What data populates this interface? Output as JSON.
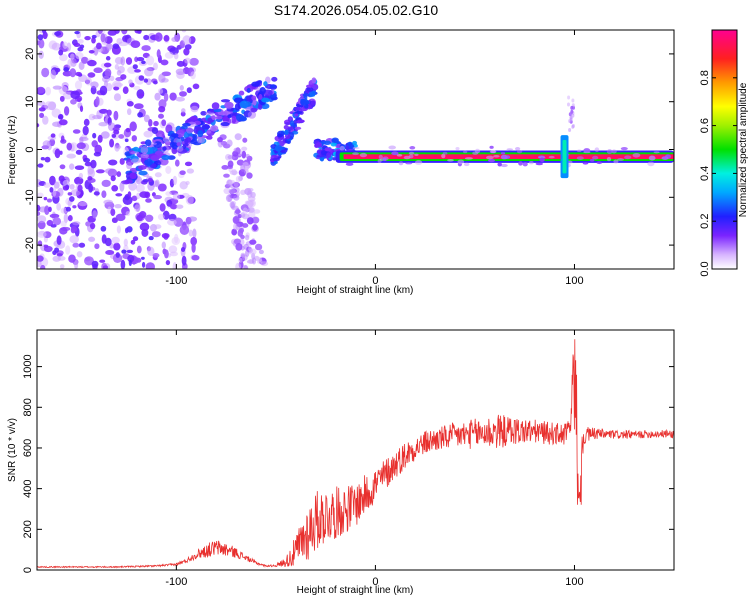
{
  "title": "S174.2026.054.05.02.G10",
  "chart_data": [
    {
      "type": "heatmap",
      "name": "spectrogram",
      "xlabel": "Height of straight line (km)",
      "ylabel": "Frequency (Hz)",
      "xlim": [
        -170,
        150
      ],
      "ylim": [
        -25,
        25
      ],
      "xticks": [
        -100,
        0,
        100
      ],
      "yticks": [
        -20,
        -10,
        0,
        10,
        20
      ],
      "colorbar": {
        "label": "Normalized spectral amplitude",
        "range": [
          0,
          1
        ],
        "ticks": [
          "0.0",
          "0.2",
          "0.4",
          "0.6",
          "0.8"
        ]
      },
      "features": [
        {
          "description": "strong carrier line",
          "x_range": [
            -20,
            150
          ],
          "frequency": -1.5,
          "amplitude": 0.95
        },
        {
          "description": "diagonal band",
          "x_range": [
            -120,
            -50
          ],
          "frequency_range": [
            -4,
            12
          ],
          "amplitude": 0.3
        },
        {
          "description": "diagonal band 2",
          "x_range": [
            -50,
            -30
          ],
          "frequency_range": [
            -2,
            12
          ],
          "amplitude": 0.3
        },
        {
          "description": "spike near 95 km",
          "x": 95,
          "frequency_range": [
            -6,
            3
          ],
          "amplitude": 0.4
        },
        {
          "description": "scattered noise",
          "x_range": [
            -170,
            -100
          ],
          "frequency_range": [
            -25,
            25
          ],
          "amplitude": 0.1
        }
      ]
    },
    {
      "type": "line",
      "name": "snr",
      "xlabel": "Height of straight line (km)",
      "ylabel": "SNR (10 * v/v)",
      "xlim": [
        -170,
        150
      ],
      "ylim": [
        0,
        1180
      ],
      "xticks": [
        -100,
        0,
        100
      ],
      "yticks": [
        0,
        200,
        400,
        600,
        800,
        1000
      ],
      "color": "#e8302e",
      "series": [
        {
          "name": "SNR",
          "x": [
            -170,
            -150,
            -130,
            -110,
            -100,
            -95,
            -90,
            -85,
            -80,
            -75,
            -70,
            -65,
            -60,
            -55,
            -50,
            -45,
            -40,
            -35,
            -30,
            -25,
            -20,
            -15,
            -10,
            -5,
            0,
            5,
            10,
            15,
            20,
            25,
            30,
            40,
            50,
            60,
            70,
            80,
            90,
            95,
            98,
            100,
            102,
            105,
            110,
            120,
            130,
            140,
            150
          ],
          "values": [
            15,
            15,
            15,
            20,
            28,
            45,
            75,
            95,
            110,
            100,
            85,
            60,
            35,
            20,
            22,
            40,
            90,
            170,
            240,
            270,
            280,
            300,
            320,
            370,
            420,
            470,
            520,
            565,
            600,
            625,
            640,
            660,
            670,
            680,
            685,
            680,
            670,
            665,
            700,
            880,
            500,
            660,
            670,
            665,
            665,
            670,
            668
          ],
          "noise": [
            3,
            3,
            3,
            4,
            6,
            10,
            20,
            35,
            40,
            35,
            25,
            15,
            8,
            4,
            6,
            25,
            80,
            140,
            150,
            140,
            130,
            120,
            110,
            100,
            90,
            80,
            70,
            70,
            60,
            60,
            60,
            65,
            75,
            90,
            70,
            60,
            55,
            55,
            60,
            90,
            80,
            45,
            30,
            22,
            20,
            20,
            20
          ]
        }
      ]
    }
  ]
}
